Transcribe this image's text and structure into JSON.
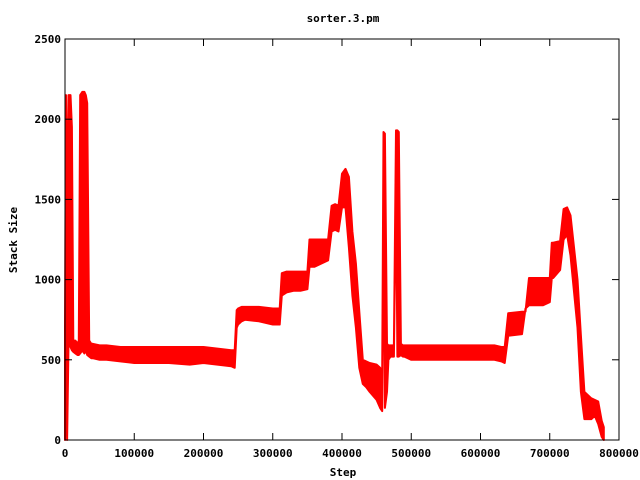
{
  "chart_data": {
    "type": "line",
    "title": "sorter.3.pm",
    "xlabel": "Step",
    "ylabel": "Stack Size",
    "xlim": [
      0,
      800000
    ],
    "ylim": [
      0,
      2500
    ],
    "x_ticks": [
      0,
      100000,
      200000,
      300000,
      400000,
      500000,
      600000,
      700000,
      800000
    ],
    "x_tick_labels": [
      "0",
      "100000",
      "200000",
      "300000",
      "400000",
      "500000",
      "600000",
      "700000",
      "800000"
    ],
    "y_ticks": [
      0,
      500,
      1000,
      1500,
      2000,
      2500
    ],
    "y_tick_labels": [
      "0",
      "500",
      "1000",
      "1500",
      "2000",
      "2500"
    ],
    "grid": false,
    "legend": "none",
    "series_color": "#ff0000",
    "series": [
      {
        "x": [
          0,
          1500,
          3000,
          5000,
          8000,
          10000,
          12000,
          15000,
          18000,
          20000,
          22000,
          25000,
          28000,
          30000,
          32000,
          35000,
          38000,
          40000,
          50000,
          60000,
          80000,
          100000,
          120000,
          150000,
          180000,
          200000,
          220000,
          240000,
          245000,
          248000,
          250000,
          255000,
          260000,
          280000,
          300000,
          310000,
          313000,
          320000,
          330000,
          340000,
          350000,
          353000,
          360000,
          370000,
          380000,
          385000,
          390000,
          395000,
          400000,
          405000,
          410000,
          415000,
          420000,
          425000,
          430000,
          435000,
          440000,
          450000,
          455000,
          458000,
          460000,
          462000,
          465000,
          467000,
          470000,
          475000,
          478000,
          480000,
          482000,
          485000,
          488000,
          490000,
          500000,
          520000,
          550000,
          580000,
          600000,
          620000,
          630000,
          635000,
          640000,
          660000,
          665000,
          670000,
          690000,
          700000,
          703000,
          705000,
          715000,
          720000,
          725000,
          730000,
          740000,
          745000,
          750000,
          760000,
          765000,
          770000,
          775000,
          778000
        ],
        "y_low": [
          0,
          600,
          0,
          600,
          580,
          560,
          550,
          540,
          530,
          530,
          540,
          560,
          540,
          560,
          530,
          520,
          510,
          510,
          500,
          500,
          490,
          480,
          480,
          480,
          470,
          480,
          470,
          460,
          450,
          700,
          720,
          740,
          750,
          740,
          720,
          720,
          900,
          920,
          930,
          930,
          940,
          1080,
          1080,
          1100,
          1120,
          1300,
          1310,
          1300,
          1450,
          1450,
          1200,
          900,
          700,
          450,
          350,
          330,
          300,
          250,
          200,
          180,
          1600,
          200,
          300,
          500,
          520,
          520,
          1600,
          520,
          520,
          530,
          520,
          520,
          500,
          500,
          500,
          500,
          500,
          500,
          490,
          480,
          650,
          660,
          820,
          840,
          840,
          860,
          1010,
          1010,
          1060,
          1250,
          1280,
          1150,
          700,
          300,
          130,
          130,
          150,
          100,
          20,
          0
        ],
        "y_high": [
          700,
          2150,
          1300,
          2150,
          2150,
          1950,
          620,
          620,
          600,
          620,
          2150,
          2170,
          2170,
          2150,
          2100,
          620,
          600,
          600,
          590,
          590,
          580,
          580,
          580,
          580,
          580,
          580,
          570,
          560,
          560,
          810,
          820,
          830,
          830,
          830,
          820,
          820,
          1040,
          1050,
          1050,
          1050,
          1050,
          1250,
          1250,
          1250,
          1250,
          1460,
          1470,
          1460,
          1660,
          1690,
          1640,
          1300,
          1100,
          800,
          500,
          490,
          480,
          470,
          450,
          420,
          1920,
          1910,
          600,
          590,
          590,
          590,
          1930,
          1930,
          1920,
          600,
          590,
          590,
          590,
          590,
          590,
          590,
          590,
          590,
          580,
          580,
          790,
          800,
          800,
          1010,
          1010,
          1010,
          1230,
          1230,
          1240,
          1440,
          1450,
          1400,
          1000,
          650,
          300,
          260,
          250,
          240,
          120,
          80
        ]
      }
    ]
  }
}
